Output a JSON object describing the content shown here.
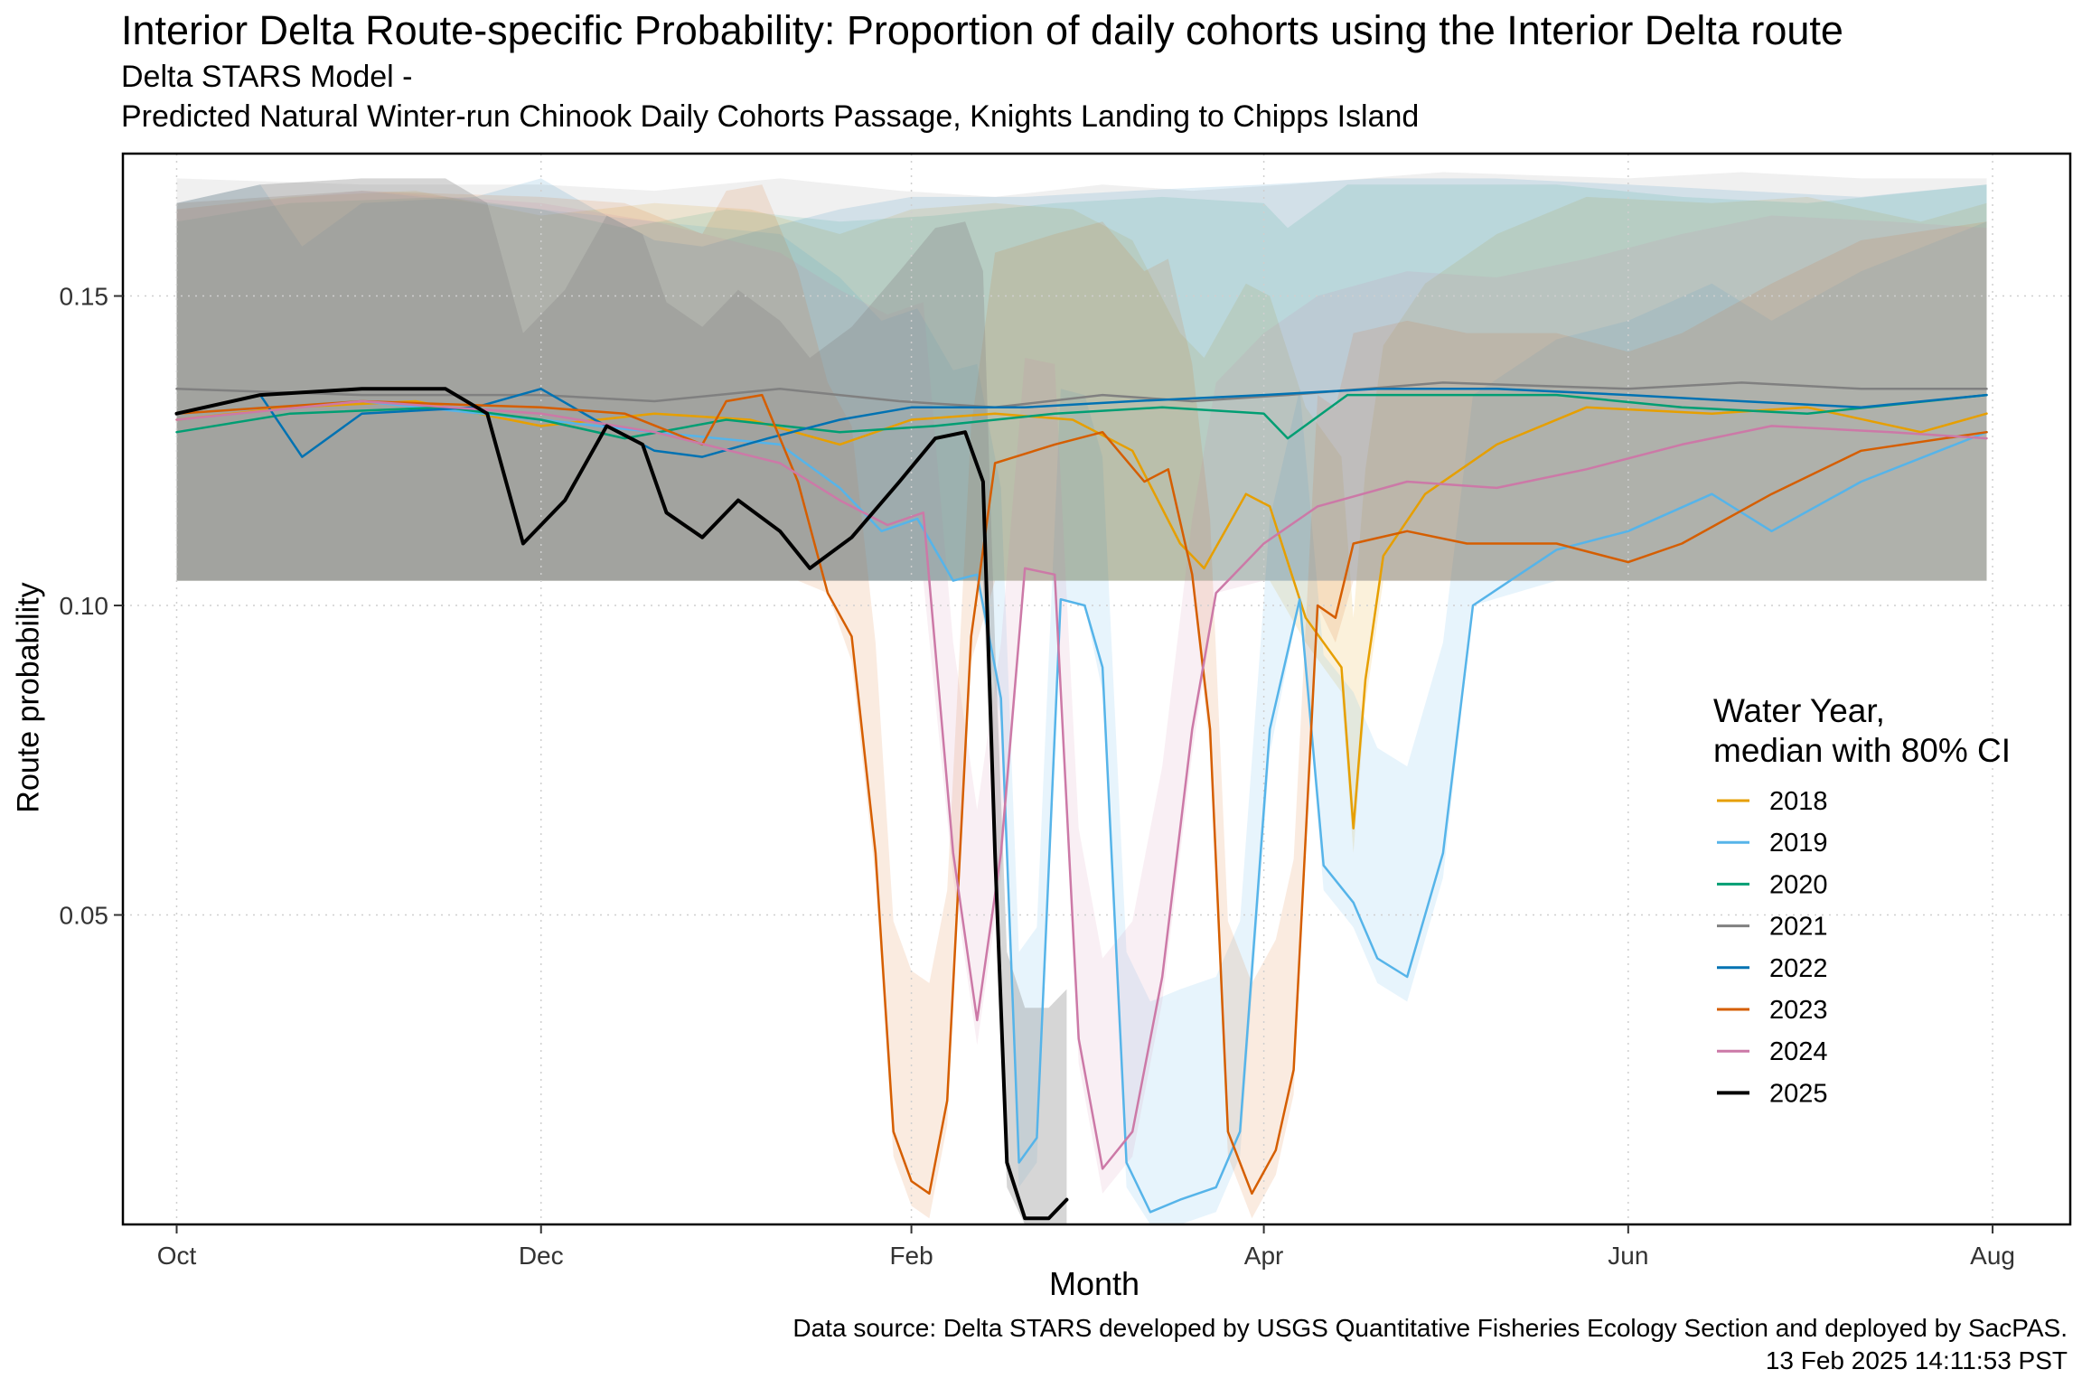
{
  "title": "Interior Delta Route-specific Probability: Proportion of daily cohorts using the Interior Delta route",
  "subtitle_line1": "Delta STARS Model -",
  "subtitle_line2": "Predicted Natural Winter-run Chinook Daily Cohorts Passage, Knights Landing to Chipps Island",
  "caption_line1": "Data source: Delta STARS developed by USGS Quantitative Fisheries Ecology Section and deployed by SacPAS.",
  "caption_line2": "13 Feb 2025 14:11:53 PST",
  "chart_data": {
    "type": "line",
    "xlabel": "Month",
    "ylabel": "Route probability",
    "x_ticks": [
      "Oct",
      "Dec",
      "Feb",
      "Apr",
      "Jun",
      "Aug"
    ],
    "y_ticks": [
      "0.05",
      "0.10",
      "0.15"
    ],
    "y_tick_values": [
      0.05,
      0.1,
      0.15
    ],
    "xlim": [
      "Sep 22",
      "Aug 14"
    ],
    "ylim": [
      0.0,
      0.173
    ],
    "grid": "dotted major gridlines",
    "legend": {
      "title_line1": "Water Year,",
      "title_line2": "median with 80% CI",
      "position": "right"
    },
    "series": [
      {
        "name": "2018",
        "color": "#E69F00",
        "points": [
          [
            "Oct 1",
            0.13
          ],
          [
            "Oct 20",
            0.132
          ],
          [
            "Nov 10",
            0.133
          ],
          [
            "Dec 1",
            0.129
          ],
          [
            "Dec 20",
            0.131
          ],
          [
            "Jan 5",
            0.13
          ],
          [
            "Jan 20",
            0.126
          ],
          [
            "Feb 1",
            0.13
          ],
          [
            "Feb 15",
            0.131
          ],
          [
            "Feb 28",
            0.13
          ],
          [
            "Mar 10",
            0.125
          ],
          [
            "Mar 18",
            0.11
          ],
          [
            "Mar 22",
            0.106
          ],
          [
            "Mar 29",
            0.118
          ],
          [
            "Apr 2",
            0.116
          ],
          [
            "Apr 8",
            0.098
          ],
          [
            "Apr 14",
            0.09
          ],
          [
            "Apr 16",
            0.064
          ],
          [
            "Apr 18",
            0.088
          ],
          [
            "Apr 21",
            0.108
          ],
          [
            "Apr 28",
            0.118
          ],
          [
            "May 10",
            0.126
          ],
          [
            "May 25",
            0.132
          ],
          [
            "Jun 15",
            0.131
          ],
          [
            "Jul 1",
            0.132
          ],
          [
            "Jul 20",
            0.128
          ],
          [
            "Jul 31",
            0.131
          ]
        ]
      },
      {
        "name": "2019",
        "color": "#56B4E9",
        "points": [
          [
            "Oct 1",
            0.131
          ],
          [
            "Nov 1",
            0.133
          ],
          [
            "Dec 1",
            0.13
          ],
          [
            "Dec 20",
            0.128
          ],
          [
            "Jan 10",
            0.126
          ],
          [
            "Jan 20",
            0.119
          ],
          [
            "Jan 27",
            0.112
          ],
          [
            "Feb 2",
            0.114
          ],
          [
            "Feb 8",
            0.104
          ],
          [
            "Feb 12",
            0.105
          ],
          [
            "Feb 16",
            0.085
          ],
          [
            "Feb 19",
            0.01
          ],
          [
            "Feb 22",
            0.014
          ],
          [
            "Feb 26",
            0.101
          ],
          [
            "Mar 2",
            0.1
          ],
          [
            "Mar 5",
            0.09
          ],
          [
            "Mar 9",
            0.01
          ],
          [
            "Mar 13",
            0.002
          ],
          [
            "Mar 18",
            0.004
          ],
          [
            "Mar 24",
            0.006
          ],
          [
            "Mar 28",
            0.015
          ],
          [
            "Apr 2",
            0.08
          ],
          [
            "Apr 7",
            0.101
          ],
          [
            "Apr 11",
            0.058
          ],
          [
            "Apr 16",
            0.052
          ],
          [
            "Apr 20",
            0.043
          ],
          [
            "Apr 25",
            0.04
          ],
          [
            "May 1",
            0.06
          ],
          [
            "May 6",
            0.1
          ],
          [
            "May 20",
            0.109
          ],
          [
            "Jun 1",
            0.112
          ],
          [
            "Jun 15",
            0.118
          ],
          [
            "Jun 25",
            0.112
          ],
          [
            "Jul 10",
            0.12
          ],
          [
            "Jul 31",
            0.128
          ]
        ]
      },
      {
        "name": "2020",
        "color": "#009E73",
        "points": [
          [
            "Oct 1",
            0.128
          ],
          [
            "Oct 20",
            0.131
          ],
          [
            "Nov 15",
            0.132
          ],
          [
            "Dec 1",
            0.13
          ],
          [
            "Dec 15",
            0.127
          ],
          [
            "Jan 1",
            0.13
          ],
          [
            "Jan 20",
            0.128
          ],
          [
            "Feb 5",
            0.129
          ],
          [
            "Feb 25",
            0.131
          ],
          [
            "Mar 15",
            0.132
          ],
          [
            "Apr 1",
            0.131
          ],
          [
            "Apr 5",
            0.127
          ],
          [
            "Apr 15",
            0.134
          ],
          [
            "May 1",
            0.134
          ],
          [
            "May 20",
            0.134
          ],
          [
            "Jun 10",
            0.132
          ],
          [
            "Jul 1",
            0.131
          ],
          [
            "Jul 31",
            0.134
          ]
        ]
      },
      {
        "name": "2021",
        "color": "#808080",
        "points": [
          [
            "Oct 1",
            0.135
          ],
          [
            "Nov 1",
            0.134
          ],
          [
            "Dec 1",
            0.134
          ],
          [
            "Dec 20",
            0.133
          ],
          [
            "Jan 10",
            0.135
          ],
          [
            "Jan 30",
            0.133
          ],
          [
            "Feb 15",
            0.132
          ],
          [
            "Mar 5",
            0.134
          ],
          [
            "Mar 20",
            0.133
          ],
          [
            "Apr 5",
            0.134
          ],
          [
            "May 1",
            0.136
          ],
          [
            "Jun 1",
            0.135
          ],
          [
            "Jun 20",
            0.136
          ],
          [
            "Jul 10",
            0.135
          ],
          [
            "Jul 31",
            0.135
          ]
        ]
      },
      {
        "name": "2022",
        "color": "#0072B2",
        "points": [
          [
            "Oct 1",
            0.131
          ],
          [
            "Oct 15",
            0.134
          ],
          [
            "Oct 22",
            0.124
          ],
          [
            "Nov 1",
            0.131
          ],
          [
            "Nov 20",
            0.132
          ],
          [
            "Dec 1",
            0.135
          ],
          [
            "Dec 10",
            0.13
          ],
          [
            "Dec 20",
            0.125
          ],
          [
            "Dec 28",
            0.124
          ],
          [
            "Jan 8",
            0.127
          ],
          [
            "Jan 20",
            0.13
          ],
          [
            "Feb 1",
            0.132
          ],
          [
            "Feb 20",
            0.132
          ],
          [
            "Mar 10",
            0.133
          ],
          [
            "Apr 1",
            0.134
          ],
          [
            "Apr 20",
            0.135
          ],
          [
            "May 10",
            0.135
          ],
          [
            "Jun 1",
            0.134
          ],
          [
            "Jun 20",
            0.133
          ],
          [
            "Jul 10",
            0.132
          ],
          [
            "Jul 31",
            0.134
          ]
        ]
      },
      {
        "name": "2023",
        "color": "#D55E00",
        "points": [
          [
            "Oct 1",
            0.131
          ],
          [
            "Nov 1",
            0.133
          ],
          [
            "Dec 1",
            0.132
          ],
          [
            "Dec 15",
            0.131
          ],
          [
            "Dec 28",
            0.126
          ],
          [
            "Jan 1",
            0.133
          ],
          [
            "Jan 7",
            0.134
          ],
          [
            "Jan 13",
            0.12
          ],
          [
            "Jan 18",
            0.102
          ],
          [
            "Jan 22",
            0.095
          ],
          [
            "Jan 26",
            0.06
          ],
          [
            "Jan 29",
            0.015
          ],
          [
            "Feb 1",
            0.007
          ],
          [
            "Feb 4",
            0.005
          ],
          [
            "Feb 7",
            0.02
          ],
          [
            "Feb 11",
            0.095
          ],
          [
            "Feb 15",
            0.123
          ],
          [
            "Feb 25",
            0.126
          ],
          [
            "Mar 5",
            0.128
          ],
          [
            "Mar 12",
            0.12
          ],
          [
            "Mar 16",
            0.122
          ],
          [
            "Mar 20",
            0.105
          ],
          [
            "Mar 23",
            0.08
          ],
          [
            "Mar 26",
            0.015
          ],
          [
            "Mar 30",
            0.005
          ],
          [
            "Apr 3",
            0.012
          ],
          [
            "Apr 6",
            0.025
          ],
          [
            "Apr 10",
            0.1
          ],
          [
            "Apr 13",
            0.098
          ],
          [
            "Apr 16",
            0.11
          ],
          [
            "Apr 25",
            0.112
          ],
          [
            "May 5",
            0.11
          ],
          [
            "May 20",
            0.11
          ],
          [
            "Jun 1",
            0.107
          ],
          [
            "Jun 10",
            0.11
          ],
          [
            "Jun 25",
            0.118
          ],
          [
            "Jul 10",
            0.125
          ],
          [
            "Jul 31",
            0.128
          ]
        ]
      },
      {
        "name": "2024",
        "color": "#CC79A7",
        "points": [
          [
            "Oct 1",
            0.13
          ],
          [
            "Nov 1",
            0.133
          ],
          [
            "Dec 1",
            0.131
          ],
          [
            "Dec 20",
            0.128
          ],
          [
            "Jan 10",
            0.123
          ],
          [
            "Jan 20",
            0.117
          ],
          [
            "Jan 28",
            0.113
          ],
          [
            "Feb 3",
            0.115
          ],
          [
            "Feb 8",
            0.06
          ],
          [
            "Feb 12",
            0.033
          ],
          [
            "Feb 16",
            0.06
          ],
          [
            "Feb 20",
            0.106
          ],
          [
            "Feb 25",
            0.105
          ],
          [
            "Mar 1",
            0.03
          ],
          [
            "Mar 5",
            0.009
          ],
          [
            "Mar 10",
            0.015
          ],
          [
            "Mar 15",
            0.04
          ],
          [
            "Mar 20",
            0.08
          ],
          [
            "Mar 24",
            0.102
          ],
          [
            "Apr 1",
            0.11
          ],
          [
            "Apr 10",
            0.116
          ],
          [
            "Apr 25",
            0.12
          ],
          [
            "May 10",
            0.119
          ],
          [
            "May 25",
            0.122
          ],
          [
            "Jun 10",
            0.126
          ],
          [
            "Jun 25",
            0.129
          ],
          [
            "Jul 15",
            0.128
          ],
          [
            "Jul 31",
            0.127
          ]
        ]
      },
      {
        "name": "2025",
        "color": "#000000",
        "points": [
          [
            "Oct 1",
            0.131
          ],
          [
            "Oct 15",
            0.134
          ],
          [
            "Nov 1",
            0.135
          ],
          [
            "Nov 15",
            0.135
          ],
          [
            "Nov 22",
            0.131
          ],
          [
            "Nov 28",
            0.11
          ],
          [
            "Dec 5",
            0.117
          ],
          [
            "Dec 12",
            0.129
          ],
          [
            "Dec 18",
            0.126
          ],
          [
            "Dec 22",
            0.115
          ],
          [
            "Dec 28",
            0.111
          ],
          [
            "Jan 3",
            0.117
          ],
          [
            "Jan 10",
            0.112
          ],
          [
            "Jan 15",
            0.106
          ],
          [
            "Jan 22",
            0.111
          ],
          [
            "Jan 30",
            0.12
          ],
          [
            "Feb 5",
            0.127
          ],
          [
            "Feb 10",
            0.128
          ],
          [
            "Feb 13",
            0.12
          ],
          [
            "Feb 15",
            0.06
          ],
          [
            "Feb 17",
            0.01
          ],
          [
            "Feb 20",
            0.001
          ],
          [
            "Feb 24",
            0.001
          ],
          [
            "Feb 27",
            0.004
          ]
        ]
      }
    ]
  }
}
